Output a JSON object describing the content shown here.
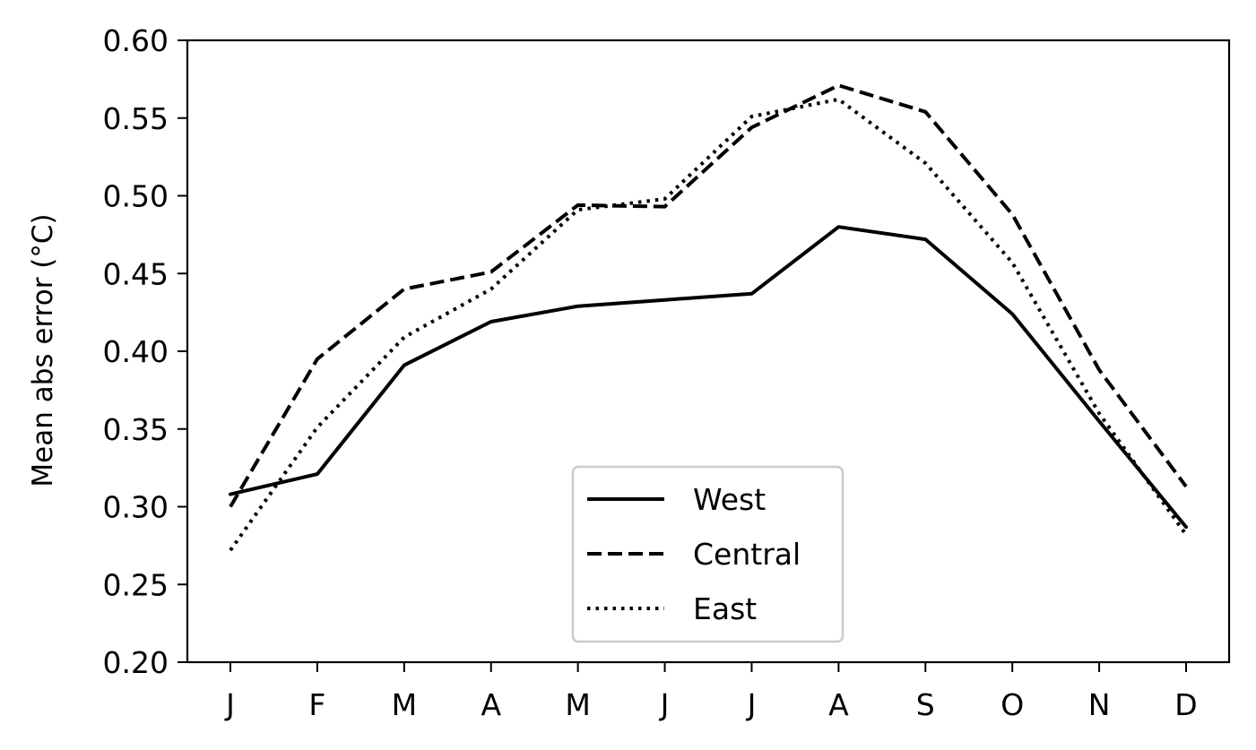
{
  "chart_data": {
    "type": "line",
    "title": "",
    "xlabel": "",
    "ylabel": "Mean abs error (°C)",
    "categories": [
      "J",
      "F",
      "M",
      "A",
      "M",
      "J",
      "J",
      "A",
      "S",
      "O",
      "N",
      "D"
    ],
    "ylim": [
      0.2,
      0.6
    ],
    "yticks": [
      "0.20",
      "0.25",
      "0.30",
      "0.35",
      "0.40",
      "0.45",
      "0.50",
      "0.55",
      "0.60"
    ],
    "grid": false,
    "legend": {
      "placement": "lower-center"
    },
    "series": [
      {
        "name": "West",
        "style": "solid",
        "color": "#000000",
        "values": [
          0.308,
          0.321,
          0.391,
          0.419,
          0.429,
          0.433,
          0.437,
          0.48,
          0.472,
          0.424,
          0.355,
          0.287
        ]
      },
      {
        "name": "Central",
        "style": "dashed",
        "color": "#000000",
        "values": [
          0.3,
          0.395,
          0.44,
          0.451,
          0.494,
          0.493,
          0.544,
          0.571,
          0.554,
          0.488,
          0.388,
          0.313
        ]
      },
      {
        "name": "East",
        "style": "dotted",
        "color": "#000000",
        "values": [
          0.272,
          0.351,
          0.409,
          0.44,
          0.491,
          0.498,
          0.551,
          0.562,
          0.521,
          0.457,
          0.36,
          0.282
        ]
      }
    ]
  }
}
